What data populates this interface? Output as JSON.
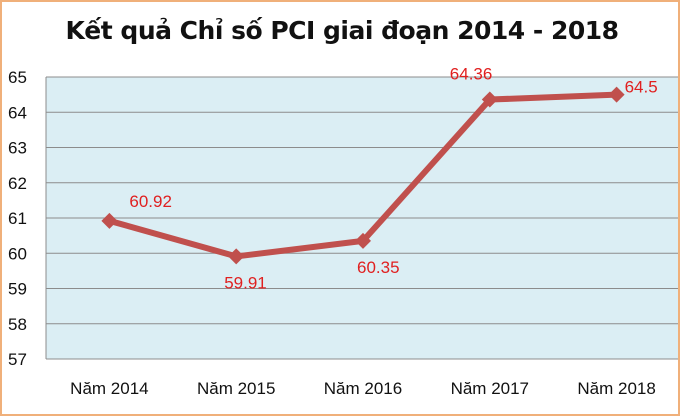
{
  "chart_data": {
    "type": "line",
    "title": "Kết quả Chỉ số PCI giai đoạn 2014 - 2018",
    "xlabel": "",
    "ylabel": "",
    "categories": [
      "Năm 2014",
      "Năm 2015",
      "Năm 2016",
      "Năm 2017",
      "Năm 2018"
    ],
    "values": [
      60.92,
      59.91,
      60.35,
      64.36,
      64.5
    ],
    "data_labels": [
      "60.92",
      "59.91",
      "60.35",
      "64.36",
      "64.5"
    ],
    "ylim": [
      57,
      65
    ],
    "yticks": [
      "57",
      "58",
      "59",
      "60",
      "61",
      "62",
      "63",
      "64",
      "65"
    ],
    "grid": true,
    "legend": "none",
    "colors": {
      "line": "#c0504d",
      "labels": "#e02020",
      "plot_bg": "#dbeef4",
      "grid": "#8c8c8c",
      "border": "#f0b07a"
    }
  }
}
